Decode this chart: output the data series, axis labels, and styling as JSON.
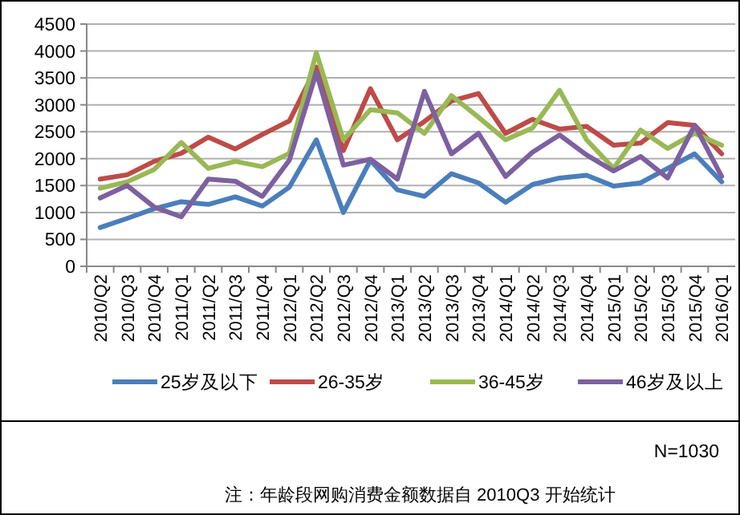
{
  "chart_data": {
    "type": "line",
    "categories": [
      "2010/Q2",
      "2010/Q3",
      "2010/Q4",
      "2011/Q1",
      "2011/Q2",
      "2011/Q3",
      "2011/Q4",
      "2012/Q1",
      "2012/Q2",
      "2012/Q3",
      "2012/Q4",
      "2013/Q1",
      "2013/Q2",
      "2013/Q3",
      "2013/Q4",
      "2014/Q1",
      "2014/Q2",
      "2014/Q3",
      "2014/Q4",
      "2015/Q1",
      "2015/Q2",
      "2015/Q3",
      "2015/Q4",
      "2016/Q1"
    ],
    "series": [
      {
        "name": "25岁及以下",
        "color": "#4a7ebb",
        "values": [
          720,
          890,
          1070,
          1200,
          1150,
          1290,
          1120,
          1470,
          2350,
          1000,
          1970,
          1420,
          1300,
          1720,
          1550,
          1190,
          1520,
          1640,
          1690,
          1490,
          1550,
          1820,
          2090,
          1570
        ]
      },
      {
        "name": "26-35岁",
        "color": "#be4b48",
        "values": [
          1620,
          1700,
          1950,
          2100,
          2400,
          2180,
          2450,
          2700,
          3700,
          2150,
          3300,
          2350,
          2690,
          3070,
          3210,
          2470,
          2730,
          2550,
          2600,
          2250,
          2290,
          2670,
          2620,
          2090
        ]
      },
      {
        "name": "36-45岁",
        "color": "#98b954",
        "values": [
          1450,
          1570,
          1800,
          2300,
          1820,
          1950,
          1850,
          2100,
          3970,
          2350,
          2910,
          2850,
          2470,
          3170,
          2770,
          2350,
          2570,
          3270,
          2350,
          1820,
          2530,
          2190,
          2470,
          2250
        ]
      },
      {
        "name": "46岁及以上",
        "color": "#7d60a0",
        "values": [
          1270,
          1500,
          1100,
          920,
          1620,
          1580,
          1300,
          1970,
          3600,
          1880,
          1990,
          1620,
          3250,
          2090,
          2470,
          1670,
          2120,
          2440,
          2070,
          1770,
          2040,
          1640,
          2620,
          1670
        ]
      }
    ],
    "ylim": [
      0,
      4500
    ],
    "yticks": [
      0,
      500,
      1000,
      1500,
      2000,
      2500,
      3000,
      3500,
      4000,
      4500
    ],
    "grid": "y",
    "legend": "bottom",
    "annotations": [
      "N=1030",
      "注：年龄段网购消费金额数据自 2010Q3 开始统计"
    ]
  }
}
